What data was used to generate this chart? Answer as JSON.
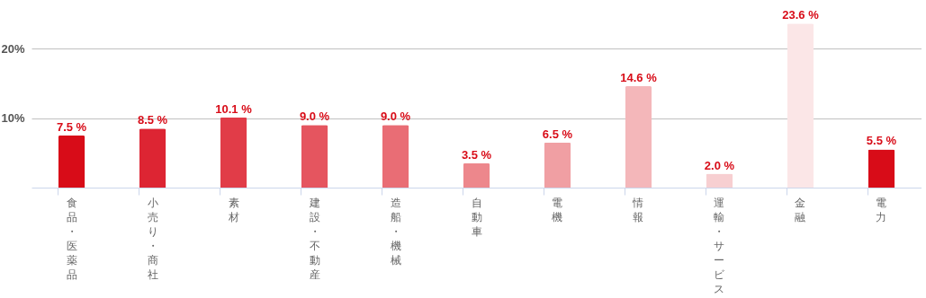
{
  "chart_data": {
    "type": "bar",
    "categories": [
      "食品・医薬品",
      "小売り・商社",
      "素材",
      "建設・不動産",
      "造船・機械",
      "自動車",
      "電機",
      "情報",
      "運輸・サービス",
      "金融",
      "電力"
    ],
    "values": [
      7.5,
      8.5,
      10.1,
      9.0,
      9.0,
      3.5,
      6.5,
      14.6,
      2.0,
      23.6,
      5.5
    ],
    "colors": [
      "#d80c18",
      "#dd2533",
      "#e13c48",
      "#e5555f",
      "#e96d75",
      "#ed878c",
      "#f09fa3",
      "#f4b7ba",
      "#f7cfd1",
      "#fbe6e7",
      "#d80c18"
    ],
    "value_labels": [
      "7.5 %",
      "8.5 %",
      "10.1 %",
      "9.0 %",
      "9.0 %",
      "3.5 %",
      "6.5 %",
      "14.6 %",
      "2.0 %",
      "23.6 %",
      "5.5 %"
    ],
    "ylim": [
      0,
      27
    ],
    "yticks": [
      {
        "value": 10,
        "label": "10%"
      },
      {
        "value": 20,
        "label": "20%"
      }
    ],
    "grid": "y"
  }
}
